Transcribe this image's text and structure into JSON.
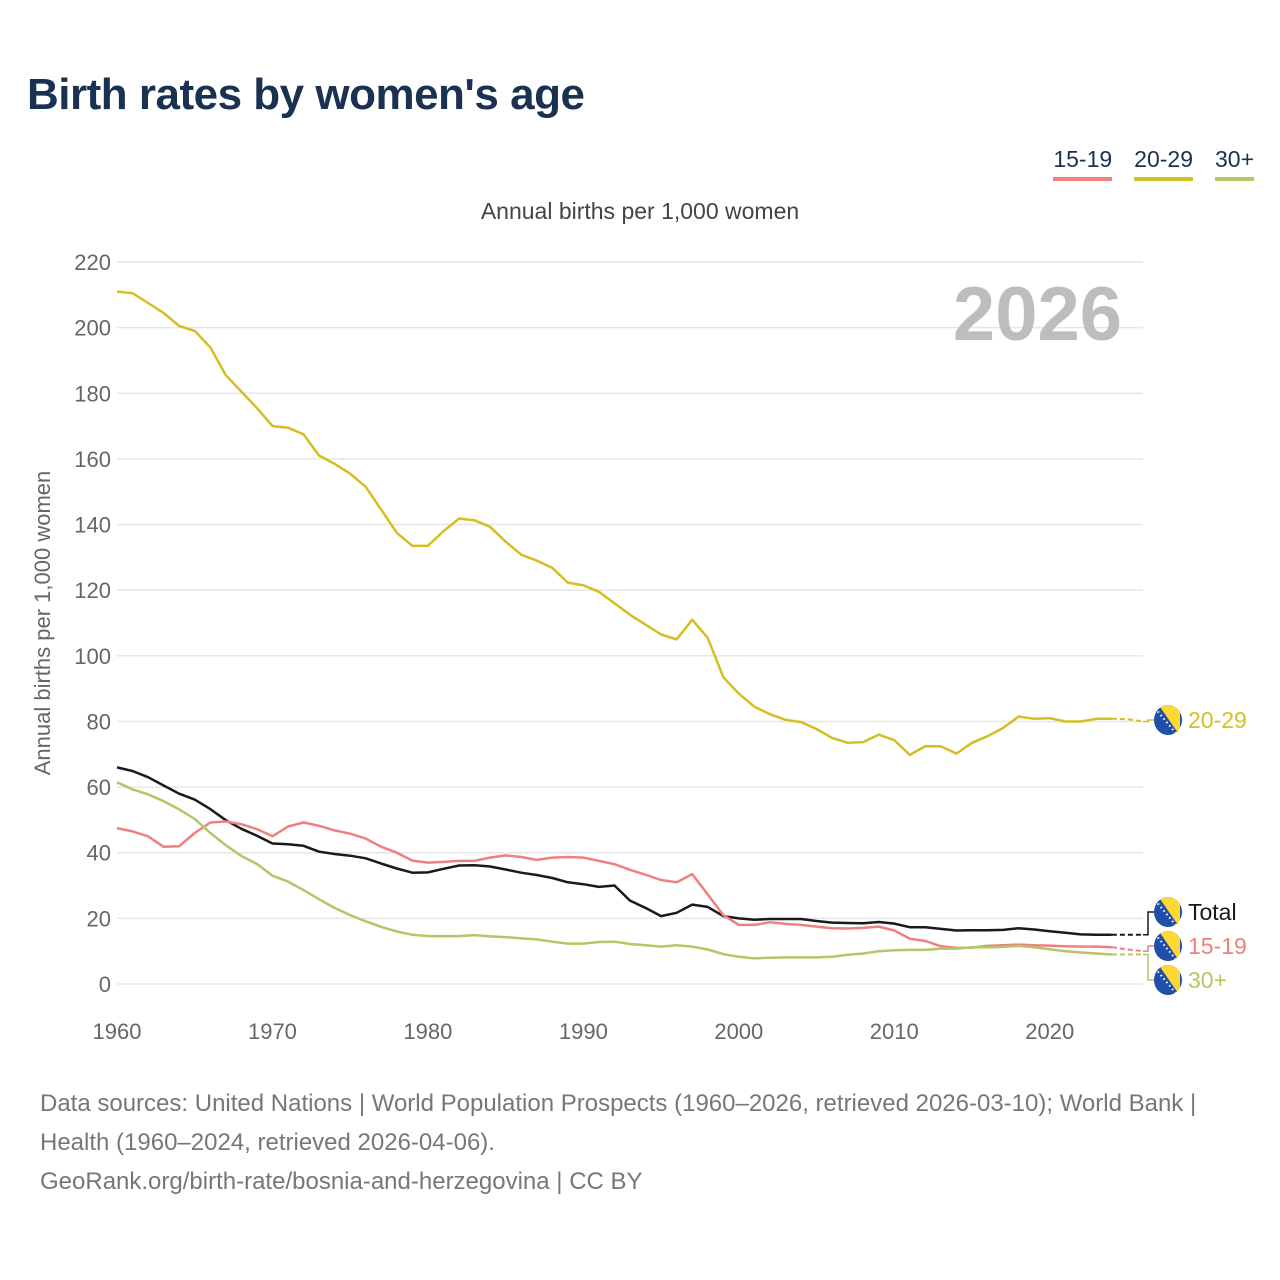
{
  "chart_data": {
    "type": "line",
    "title": "Birth rates by women's age",
    "subtitle": "Annual births per 1,000 women",
    "ylabel": "Annual births per 1,000 women",
    "xlabel": "",
    "year_watermark": "2026",
    "ylim": [
      0,
      220
    ],
    "xlim": [
      1960,
      2026
    ],
    "yticks": [
      0,
      20,
      40,
      60,
      80,
      100,
      120,
      140,
      160,
      180,
      200,
      220
    ],
    "xticks": [
      1960,
      1970,
      1980,
      1990,
      2000,
      2010,
      2020
    ],
    "grid": true,
    "legend_position": "top-right",
    "projection_start": 2024,
    "x_start": 1960,
    "series": [
      {
        "name": "20-29",
        "color": "#d4bf22",
        "end_label": "20-29",
        "in_legend": true,
        "values": [
          211,
          210.5,
          207.5,
          204.5,
          200.5,
          199,
          194,
          185.5,
          180.5,
          175.5,
          170,
          169.5,
          167.5,
          161,
          158.5,
          155.5,
          151.5,
          144.5,
          137.5,
          133.5,
          133.5,
          138,
          141.8,
          141.3,
          139.3,
          134.8,
          130.8,
          129,
          126.8,
          122.3,
          121.5,
          119.5,
          116,
          112.5,
          109.5,
          106.5,
          105,
          111,
          105.5,
          93.5,
          88.5,
          84.5,
          82.2,
          80.5,
          79.8,
          77.7,
          75,
          73.5,
          73.7,
          76,
          74.3,
          69.8,
          72.5,
          72.4,
          70.2,
          73.5,
          75.5,
          78,
          81.5,
          80.8,
          81,
          80,
          80,
          80.8,
          80.8,
          80.7,
          80
        ]
      },
      {
        "name": "Total",
        "color": "#1a1a1a",
        "end_label": "Total",
        "in_legend": false,
        "values": [
          66,
          64.9,
          63,
          60.5,
          58,
          56.2,
          53.3,
          49.9,
          47.3,
          45.2,
          42.8,
          42.6,
          42.1,
          40.3,
          39.6,
          39.1,
          38.3,
          36.7,
          35.2,
          33.9,
          34,
          35.1,
          36.1,
          36.2,
          35.8,
          34.9,
          33.9,
          33.2,
          32.3,
          31,
          30.4,
          29.6,
          30,
          25.4,
          23.2,
          20.7,
          21.7,
          24.2,
          23.5,
          20.7,
          20,
          19.6,
          19.8,
          19.8,
          19.8,
          19.2,
          18.7,
          18.6,
          18.5,
          18.9,
          18.4,
          17.3,
          17.3,
          16.8,
          16.3,
          16.4,
          16.4,
          16.5,
          17,
          16.6,
          16.1,
          15.6,
          15.1,
          15,
          15,
          15,
          15
        ]
      },
      {
        "name": "15-19",
        "color": "#ee8080",
        "end_label": "15-19",
        "in_legend": true,
        "values": [
          47.5,
          46.5,
          45,
          41.8,
          42,
          46,
          49.2,
          49.5,
          48.7,
          47.2,
          45,
          48,
          49.2,
          48.2,
          46.8,
          45.8,
          44.3,
          41.8,
          40,
          37.6,
          37,
          37.2,
          37.5,
          37.5,
          38.5,
          39.2,
          38.7,
          37.8,
          38.5,
          38.7,
          38.5,
          37.5,
          36.5,
          34.8,
          33.3,
          31.7,
          31,
          33.5,
          27.3,
          21,
          18,
          18,
          18.8,
          18.3,
          18,
          17.5,
          17,
          16.9,
          17.1,
          17.5,
          16.3,
          13.8,
          13.1,
          11.5,
          11,
          11.1,
          11.6,
          11.8,
          12,
          11.8,
          11.7,
          11.5,
          11.4,
          11.4,
          11.2,
          10.5,
          10
        ]
      },
      {
        "name": "30+",
        "color": "#b3c766",
        "end_label": "30+",
        "in_legend": true,
        "values": [
          61.5,
          59.3,
          57.8,
          55.7,
          53.2,
          50.3,
          46,
          42.3,
          39,
          36.6,
          33,
          31.2,
          28.6,
          25.8,
          23.2,
          21,
          19.1,
          17.4,
          16,
          15,
          14.6,
          14.6,
          14.6,
          14.9,
          14.5,
          14.3,
          13.9,
          13.6,
          12.9,
          12.3,
          12.3,
          12.8,
          12.9,
          12.2,
          11.8,
          11.4,
          11.8,
          11.4,
          10.5,
          9.1,
          8.3,
          7.8,
          8,
          8.1,
          8.1,
          8.1,
          8.3,
          8.9,
          9.3,
          10,
          10.3,
          10.4,
          10.4,
          10.8,
          10.8,
          11.2,
          11.2,
          11.3,
          11.6,
          11.2,
          10.6,
          10,
          9.6,
          9.3,
          9,
          9,
          9
        ]
      }
    ]
  },
  "legend": [
    {
      "label": "15-19",
      "color": "#ee8080"
    },
    {
      "label": "20-29",
      "color": "#d4bf22"
    },
    {
      "label": "30+",
      "color": "#b3c766"
    }
  ],
  "footer": {
    "sources": "Data sources: United Nations | World Population Prospects (1960–2026, retrieved 2026-03-10); World Bank | Health (1960–2024, retrieved 2026-04-06).",
    "credit": "GeoRank.org/birth-rate/bosnia-and-herzegovina | CC BY"
  }
}
